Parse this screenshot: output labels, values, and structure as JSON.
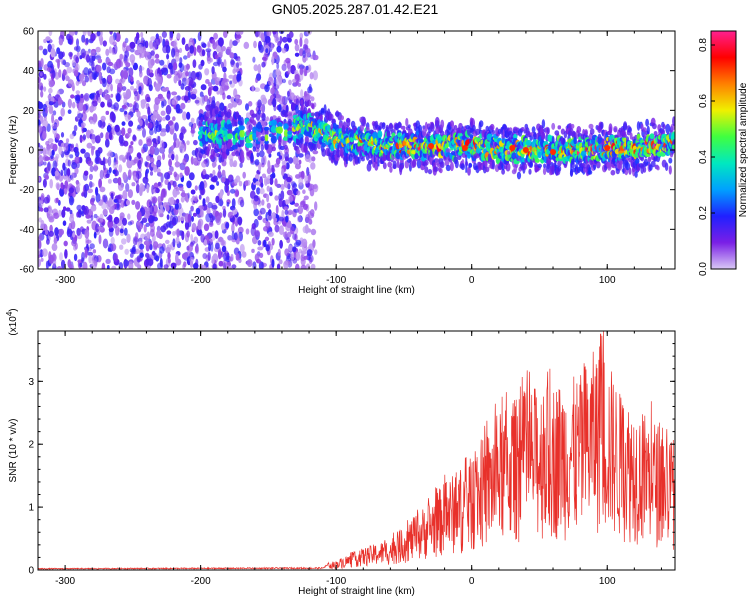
{
  "title": "GN05.2025.287.01.42.E21",
  "chart_data": [
    {
      "type": "heatmap",
      "xlabel": "Height of straight line (km)",
      "ylabel": "Frequency (Hz)",
      "xlim": [
        -320,
        150
      ],
      "ylim": [
        -60,
        60
      ],
      "xticks": [
        -300,
        -200,
        -100,
        0,
        100
      ],
      "yticks": [
        -60,
        -40,
        -20,
        0,
        20,
        40,
        60
      ],
      "colorbar": {
        "label": "Normalized spectral amplitude",
        "range": [
          0.0,
          0.85
        ],
        "ticks": [
          0.0,
          0.2,
          0.4,
          0.6,
          0.8
        ],
        "colormap": [
          "#d9c9f5",
          "#7a1fe6",
          "#2020ff",
          "#00a0ff",
          "#00e8c0",
          "#40ff40",
          "#f0f000",
          "#ff8000",
          "#ff0000",
          "#ff2090"
        ]
      },
      "noise_region": {
        "x": [
          -320,
          -130
        ],
        "amplitude": 0.05
      },
      "gap_region": {
        "x": [
          -170,
          -165
        ]
      },
      "signal_track": {
        "x_start": -200,
        "x_end": 150,
        "center_freq": [
          [
            -200,
            8
          ],
          [
            -150,
            8
          ],
          [
            -120,
            12
          ],
          [
            -100,
            6
          ],
          [
            -60,
            2
          ],
          [
            0,
            2
          ],
          [
            40,
            0
          ],
          [
            80,
            0
          ],
          [
            120,
            1
          ],
          [
            150,
            3
          ]
        ],
        "half_width": 9,
        "peak_amplitude": 0.85
      }
    },
    {
      "type": "line",
      "xlabel": "Height of straight line (km)",
      "ylabel": "SNR (10 * v/v)",
      "exponent_label": "(x10",
      "exponent_power": "4",
      "exponent_close": ")",
      "xlim": [
        -320,
        150
      ],
      "ylim": [
        0,
        3.8
      ],
      "xticks": [
        -300,
        -200,
        -100,
        0,
        100
      ],
      "yticks": [
        0,
        1,
        2,
        3
      ],
      "color": "#e8302a",
      "envelope": [
        [
          -320,
          0.02
        ],
        [
          -110,
          0.03
        ],
        [
          -100,
          0.15
        ],
        [
          -80,
          0.35
        ],
        [
          -60,
          0.5
        ],
        [
          -40,
          0.9
        ],
        [
          -20,
          1.4
        ],
        [
          0,
          1.8
        ],
        [
          20,
          2.5
        ],
        [
          40,
          2.9
        ],
        [
          60,
          3.0
        ],
        [
          80,
          3.1
        ],
        [
          95,
          3.7
        ],
        [
          110,
          2.8
        ],
        [
          130,
          2.5
        ],
        [
          150,
          2.1
        ]
      ],
      "peak": {
        "x": 95,
        "y": 3.75
      }
    }
  ]
}
